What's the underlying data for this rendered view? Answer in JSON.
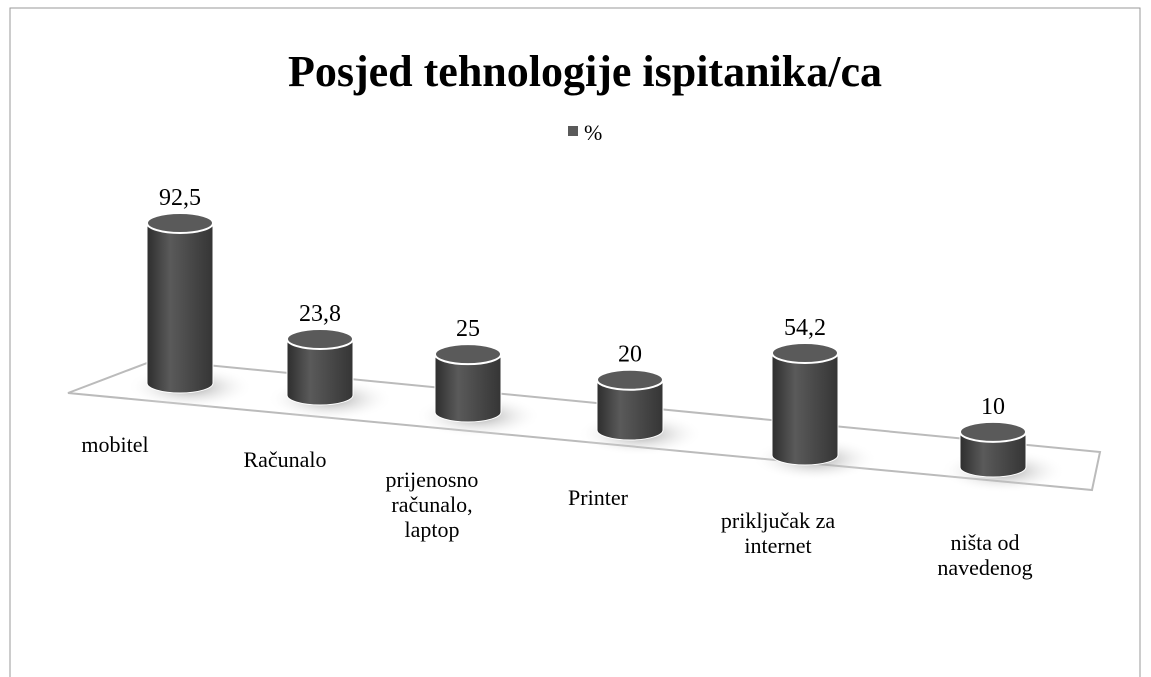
{
  "chart_data": {
    "type": "bar3d",
    "title": "Posjed tehnologije ispitanika/ca",
    "categories": [
      "mobitel",
      "Računalo",
      "prijenosno računalo, laptop",
      "Printer",
      "priključak za internet",
      "ništa od navedenog"
    ],
    "series": [
      {
        "name": "%",
        "color": "#5a5a5a",
        "values": [
          92.5,
          23.8,
          25,
          20,
          54.2,
          10
        ],
        "value_labels": [
          "92,5",
          "23,8",
          "25",
          "20",
          "54,2",
          "10"
        ]
      }
    ],
    "legend": "top"
  }
}
